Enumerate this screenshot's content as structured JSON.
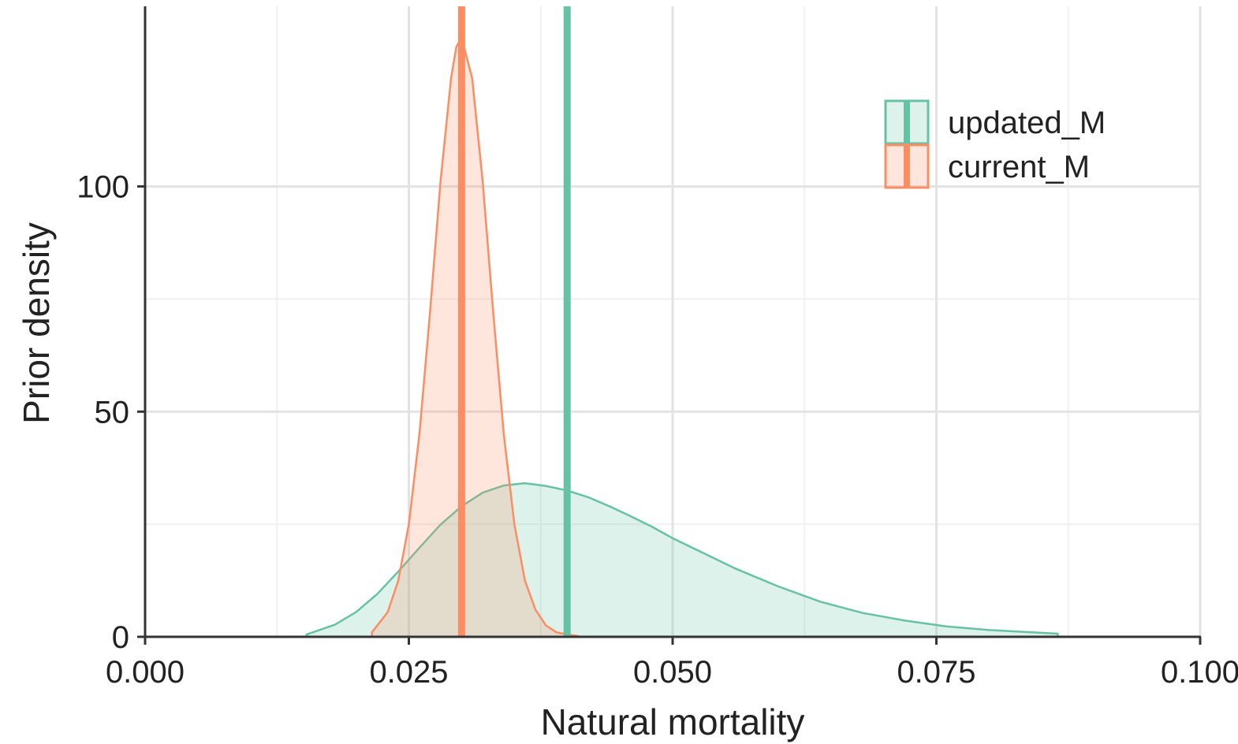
{
  "chart_data": {
    "type": "area",
    "title": "",
    "xlabel": "Natural mortality",
    "ylabel": "Prior density",
    "xlim": [
      0.0,
      0.1
    ],
    "ylim": [
      0,
      140
    ],
    "x_ticks": [
      0.0,
      0.025,
      0.05,
      0.075,
      0.1
    ],
    "x_tick_labels": [
      "0.000",
      "0.025",
      "0.050",
      "0.075",
      "0.100"
    ],
    "y_ticks": [
      0,
      50,
      100
    ],
    "y_tick_labels": [
      "0",
      "50",
      "100"
    ],
    "grid": true,
    "legend_position": "top-right",
    "series": [
      {
        "name": "updated_M",
        "color": "#66c2a5",
        "reference_line": 0.04,
        "x": [
          0.0153,
          0.018,
          0.02,
          0.022,
          0.024,
          0.026,
          0.028,
          0.03,
          0.032,
          0.034,
          0.036,
          0.038,
          0.04,
          0.042,
          0.044,
          0.046,
          0.048,
          0.05,
          0.053,
          0.056,
          0.06,
          0.064,
          0.068,
          0.072,
          0.076,
          0.08,
          0.0865
        ],
        "values": [
          0.5,
          2.7,
          5.5,
          9.5,
          14.5,
          19.8,
          24.9,
          29.0,
          32.0,
          33.6,
          34.1,
          33.5,
          32.5,
          31.0,
          29.0,
          26.8,
          24.5,
          21.9,
          18.5,
          15.1,
          11.2,
          7.8,
          5.3,
          3.6,
          2.3,
          1.5,
          0.7
        ]
      },
      {
        "name": "current_M",
        "color": "#fc8d62",
        "reference_line": 0.03,
        "x": [
          0.0215,
          0.023,
          0.024,
          0.025,
          0.026,
          0.027,
          0.028,
          0.029,
          0.0295,
          0.03,
          0.031,
          0.032,
          0.033,
          0.034,
          0.035,
          0.036,
          0.037,
          0.038,
          0.039,
          0.04,
          0.041
        ],
        "values": [
          1.0,
          5.5,
          12.5,
          25.0,
          45.0,
          72.0,
          101.0,
          124.0,
          131.0,
          133.0,
          124.0,
          101.0,
          72.0,
          45.0,
          25.0,
          12.5,
          6.0,
          2.5,
          1.0,
          0.5,
          0.2
        ]
      }
    ]
  }
}
